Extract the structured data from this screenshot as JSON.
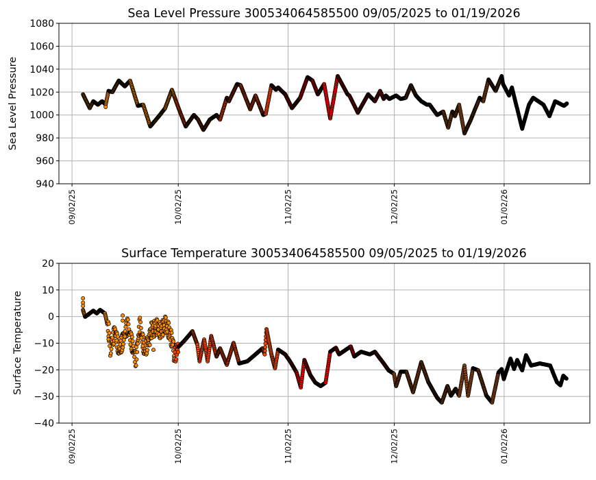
{
  "chart_data": [
    {
      "type": "scatter",
      "title": "Sea Level Pressure 300534064585500  09/05/2025 to 01/19/2026",
      "xlabel": "",
      "ylabel": "Sea Level Pressure",
      "ylim": [
        940,
        1080
      ],
      "yticks": [
        940,
        960,
        980,
        1000,
        1020,
        1040,
        1060,
        1080
      ],
      "x_units": "days since 09/02/25",
      "xlim": [
        -3.7,
        146.2
      ],
      "xticks": [
        {
          "day": 0,
          "label": "09/02/25"
        },
        {
          "day": 30,
          "label": "10/02/25"
        },
        {
          "day": 61,
          "label": "11/02/25"
        },
        {
          "day": 91,
          "label": "12/02/25"
        },
        {
          "day": 122,
          "label": "01/02/26"
        }
      ],
      "grid": true,
      "month_colors": [
        {
          "from": 0,
          "color": "#ff8c00"
        },
        {
          "from": 29,
          "color": "#ff4500"
        },
        {
          "from": 60,
          "color": "#ff0000"
        },
        {
          "from": 90,
          "color": "#8b4513"
        },
        {
          "from": 121,
          "color": "#000000"
        }
      ],
      "points": [
        [
          3.1,
          1018
        ],
        [
          5.0,
          1006
        ],
        [
          6.0,
          1012
        ],
        [
          7.3,
          1009
        ],
        [
          8.5,
          1012
        ],
        [
          9.5,
          1009
        ],
        [
          10.3,
          1021
        ],
        [
          11.4,
          1020
        ],
        [
          13.2,
          1030
        ],
        [
          14.9,
          1025
        ],
        [
          16.4,
          1030
        ],
        [
          18.6,
          1008
        ],
        [
          20.1,
          1009
        ],
        [
          22.1,
          990
        ],
        [
          24.8,
          1000
        ],
        [
          26.3,
          1006
        ],
        [
          28.2,
          1022
        ],
        [
          30.2,
          1005
        ],
        [
          32.1,
          990
        ],
        [
          34.4,
          1000
        ],
        [
          35.6,
          996
        ],
        [
          37.1,
          987
        ],
        [
          38.9,
          996
        ],
        [
          40.8,
          1000
        ],
        [
          41.8,
          996
        ],
        [
          43.7,
          1015
        ],
        [
          44.3,
          1012
        ],
        [
          46.6,
          1027
        ],
        [
          47.6,
          1026
        ],
        [
          50.3,
          1005
        ],
        [
          51.8,
          1017
        ],
        [
          54.0,
          1000
        ],
        [
          54.7,
          1001
        ],
        [
          56.3,
          1026
        ],
        [
          57.6,
          1022
        ],
        [
          58.2,
          1024
        ],
        [
          60.2,
          1018
        ],
        [
          62.1,
          1006
        ],
        [
          64.4,
          1015
        ],
        [
          66.5,
          1033
        ],
        [
          67.9,
          1030
        ],
        [
          69.4,
          1018
        ],
        [
          71.2,
          1027
        ],
        [
          72.9,
          997
        ],
        [
          75.0,
          1034
        ],
        [
          77.8,
          1018
        ],
        [
          78.3,
          1017
        ],
        [
          80.7,
          1002
        ],
        [
          83.6,
          1018
        ],
        [
          85.5,
          1012
        ],
        [
          87.0,
          1021
        ],
        [
          88.0,
          1014
        ],
        [
          88.6,
          1017
        ],
        [
          89.6,
          1014
        ],
        [
          91.5,
          1017
        ],
        [
          92.8,
          1014
        ],
        [
          94.2,
          1015
        ],
        [
          95.7,
          1026
        ],
        [
          97.1,
          1017
        ],
        [
          98.6,
          1012
        ],
        [
          100.2,
          1009
        ],
        [
          101.0,
          1009
        ],
        [
          103.1,
          1000
        ],
        [
          104.8,
          1003
        ],
        [
          106.2,
          989
        ],
        [
          107.4,
          1003
        ],
        [
          108.1,
          999
        ],
        [
          109.3,
          1009
        ],
        [
          110.8,
          984
        ],
        [
          112.6,
          996
        ],
        [
          115.1,
          1015
        ],
        [
          116.1,
          1012
        ],
        [
          117.6,
          1031
        ],
        [
          119.6,
          1021
        ],
        [
          121.3,
          1034
        ],
        [
          121.7,
          1027
        ],
        [
          123.4,
          1017
        ],
        [
          124.2,
          1024
        ],
        [
          127.1,
          988
        ],
        [
          129.0,
          1009
        ],
        [
          130.2,
          1015
        ],
        [
          133.1,
          1009
        ],
        [
          134.8,
          999
        ],
        [
          136.4,
          1012
        ],
        [
          138.9,
          1008
        ],
        [
          139.7,
          1010
        ]
      ],
      "outliers": [
        [
          9.5,
          1007
        ]
      ]
    },
    {
      "type": "scatter",
      "title": "Surface Temperature 300534064585500  09/05/2025 to 01/19/2026",
      "xlabel": "",
      "ylabel": "Surface Temperature",
      "ylim": [
        -40,
        20
      ],
      "yticks": [
        -40,
        -30,
        -20,
        -10,
        0,
        10,
        20
      ],
      "x_units": "days since 09/02/25",
      "xlim": [
        -3.7,
        146.2
      ],
      "xticks": [
        {
          "day": 0,
          "label": "09/02/25"
        },
        {
          "day": 30,
          "label": "10/02/25"
        },
        {
          "day": 61,
          "label": "11/02/25"
        },
        {
          "day": 91,
          "label": "12/02/25"
        },
        {
          "day": 122,
          "label": "01/02/26"
        }
      ],
      "grid": true,
      "month_colors": [
        {
          "from": 0,
          "color": "#ff8c00"
        },
        {
          "from": 29,
          "color": "#ff4500"
        },
        {
          "from": 60,
          "color": "#ff0000"
        },
        {
          "from": 90,
          "color": "#8b4513"
        },
        {
          "from": 121,
          "color": "#000000"
        }
      ],
      "points": [
        [
          3.1,
          2.5
        ],
        [
          3.7,
          -0.1
        ],
        [
          6.0,
          2.2
        ],
        [
          7.0,
          1.2
        ],
        [
          7.9,
          2.5
        ],
        [
          9.3,
          1.2
        ],
        [
          10.3,
          -4.7
        ],
        [
          10.8,
          -11.7
        ],
        [
          12.2,
          -5.5
        ],
        [
          13.3,
          -13.2
        ],
        [
          15.7,
          -3.4
        ],
        [
          18.0,
          -16.3
        ],
        [
          19.1,
          -2.9
        ],
        [
          20.5,
          -13.0
        ],
        [
          21.9,
          -8.1
        ],
        [
          22.4,
          -5.2
        ],
        [
          24.0,
          -3.9
        ],
        [
          25.0,
          -5.5
        ],
        [
          26.3,
          -2.9
        ],
        [
          27.3,
          -5.2
        ],
        [
          28.6,
          -10.6
        ],
        [
          28.8,
          -15.8
        ],
        [
          29.8,
          -11.7
        ],
        [
          31.7,
          -9.1
        ],
        [
          34.0,
          -5.5
        ],
        [
          35.4,
          -10.6
        ],
        [
          36.0,
          -16.8
        ],
        [
          37.3,
          -8.6
        ],
        [
          38.3,
          -16.8
        ],
        [
          39.3,
          -7.3
        ],
        [
          40.8,
          -15.0
        ],
        [
          41.8,
          -11.9
        ],
        [
          43.7,
          -18.1
        ],
        [
          45.6,
          -9.9
        ],
        [
          47.2,
          -17.6
        ],
        [
          49.5,
          -16.8
        ],
        [
          51.1,
          -15.0
        ],
        [
          53.8,
          -11.9
        ],
        [
          54.4,
          -14.2
        ],
        [
          54.9,
          -4.7
        ],
        [
          56.3,
          -14.2
        ],
        [
          57.3,
          -19.4
        ],
        [
          58.2,
          -12.4
        ],
        [
          60.2,
          -14.2
        ],
        [
          61.7,
          -17.1
        ],
        [
          63.4,
          -21.0
        ],
        [
          64.6,
          -26.6
        ],
        [
          65.6,
          -16.3
        ],
        [
          67.3,
          -22.0
        ],
        [
          68.7,
          -24.8
        ],
        [
          70.2,
          -26.1
        ],
        [
          71.6,
          -24.8
        ],
        [
          72.9,
          -13.2
        ],
        [
          74.5,
          -11.7
        ],
        [
          75.4,
          -14.2
        ],
        [
          78.7,
          -11.2
        ],
        [
          79.7,
          -15.0
        ],
        [
          81.6,
          -13.2
        ],
        [
          84.1,
          -14.2
        ],
        [
          85.5,
          -13.2
        ],
        [
          88.0,
          -17.6
        ],
        [
          89.4,
          -20.2
        ],
        [
          90.9,
          -21.5
        ],
        [
          91.5,
          -26.1
        ],
        [
          92.8,
          -20.7
        ],
        [
          94.4,
          -20.7
        ],
        [
          96.3,
          -28.4
        ],
        [
          98.6,
          -17.1
        ],
        [
          100.6,
          -24.6
        ],
        [
          103.1,
          -30.5
        ],
        [
          104.4,
          -32.3
        ],
        [
          106.0,
          -26.1
        ],
        [
          107.0,
          -29.7
        ],
        [
          108.3,
          -27.1
        ],
        [
          109.3,
          -29.7
        ],
        [
          110.8,
          -18.4
        ],
        [
          111.8,
          -29.7
        ],
        [
          113.2,
          -19.4
        ],
        [
          114.7,
          -20.2
        ],
        [
          117.0,
          -29.7
        ],
        [
          118.6,
          -32.3
        ],
        [
          120.4,
          -21.0
        ],
        [
          121.3,
          -19.7
        ],
        [
          121.9,
          -23.5
        ],
        [
          123.8,
          -15.8
        ],
        [
          124.8,
          -19.7
        ],
        [
          125.7,
          -16.3
        ],
        [
          127.1,
          -20.2
        ],
        [
          128.2,
          -14.5
        ],
        [
          129.6,
          -18.4
        ],
        [
          132.1,
          -17.6
        ],
        [
          135.0,
          -18.4
        ],
        [
          136.9,
          -24.6
        ],
        [
          137.9,
          -25.8
        ],
        [
          138.7,
          -22.2
        ],
        [
          139.6,
          -23.3
        ]
      ],
      "outliers": [
        [
          3.1,
          6.9
        ],
        [
          3.1,
          5.2
        ],
        [
          3.1,
          4.0
        ],
        [
          14.3,
          0.4
        ],
        [
          14.3,
          -1.5
        ],
        [
          10.3,
          -8.5
        ],
        [
          12.6,
          -9.0
        ],
        [
          16.5,
          -10.5
        ],
        [
          19.6,
          -8.0
        ],
        [
          20.0,
          -11.0
        ],
        [
          23.0,
          -12.5
        ],
        [
          14.9,
          -7.5
        ]
      ]
    }
  ]
}
